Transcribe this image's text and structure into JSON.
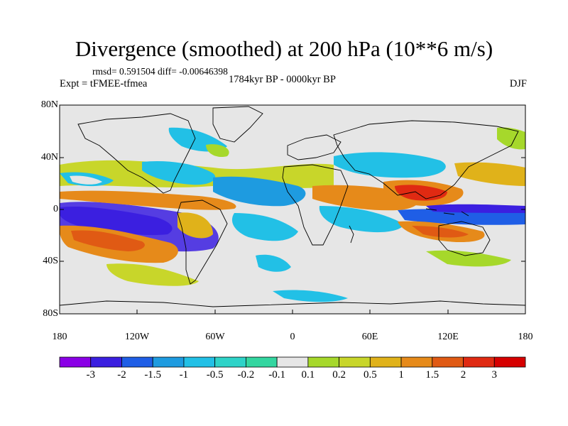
{
  "title": "Divergence (smoothed) at 200 hPa (10**6 m/s)",
  "stats": {
    "rmsd_line": "rmsd= 0.591504 diff= -0.00646398",
    "experiment": "Expt = tFMEE-tfmea",
    "period": "1784kyr BP - 0000kyr BP",
    "season": "DJF"
  },
  "lat_labels": [
    "80N",
    "40N",
    "0",
    "40S",
    "80S"
  ],
  "lon_labels": [
    "180",
    "120W",
    "60W",
    "0",
    "60E",
    "120E",
    "180"
  ],
  "colorbar": {
    "labels": [
      "-3",
      "-2",
      "-1.5",
      "-1",
      "-0.5",
      "-0.2",
      "-0.1",
      "0.1",
      "0.2",
      "0.5",
      "1",
      "1.5",
      "2",
      "3"
    ],
    "colors": [
      "#8a00e6",
      "#3b1fe0",
      "#1f5ee6",
      "#1e9be0",
      "#22c0e6",
      "#2ed3c8",
      "#33d6a0",
      "#e6e6e6",
      "#a6d82b",
      "#c8d62a",
      "#e0b21a",
      "#e68a1a",
      "#e05a14",
      "#e02a12",
      "#d60000"
    ]
  }
}
